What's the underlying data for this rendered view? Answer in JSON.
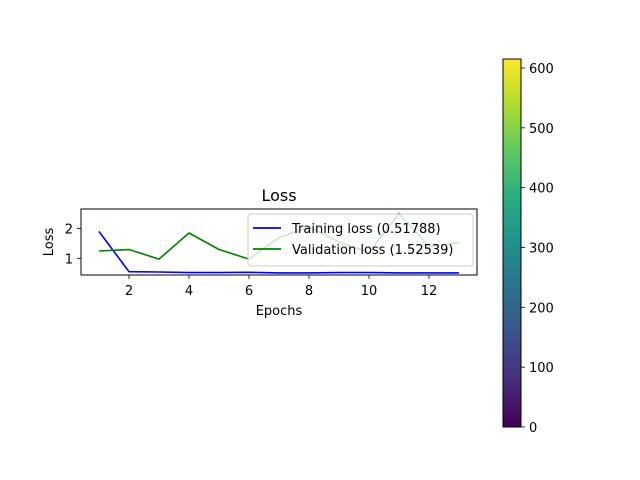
{
  "chart_data": {
    "type": "line",
    "title": "Loss",
    "xlabel": "Epochs",
    "ylabel": "Loss",
    "xlim": [
      0.4,
      13.6
    ],
    "ylim": [
      0.45,
      2.65
    ],
    "xticks": [
      2,
      4,
      6,
      8,
      10,
      12
    ],
    "yticks": [
      1,
      2
    ],
    "grid": false,
    "legend_placement": "upper-right",
    "x": [
      1,
      2,
      3,
      4,
      5,
      6,
      7,
      8,
      9,
      10,
      11,
      12,
      13
    ],
    "series": [
      {
        "name": "Training loss (0.51788)",
        "color": "#0000ff",
        "values": [
          1.9,
          0.56,
          0.55,
          0.53,
          0.53,
          0.54,
          0.52,
          0.52,
          0.53,
          0.53,
          0.52,
          0.52,
          0.52
        ]
      },
      {
        "name": "Validation loss (1.52539)",
        "color": "#008000",
        "values": [
          1.25,
          1.3,
          0.98,
          1.85,
          1.3,
          0.98,
          1.7,
          2.05,
          1.55,
          1.2,
          2.5,
          1.4,
          1.53
        ]
      }
    ],
    "colorbar": {
      "colormap": "viridis",
      "range": [
        0,
        615
      ],
      "ticks": [
        "0",
        "100",
        "200",
        "300",
        "400",
        "500",
        "600"
      ]
    }
  }
}
